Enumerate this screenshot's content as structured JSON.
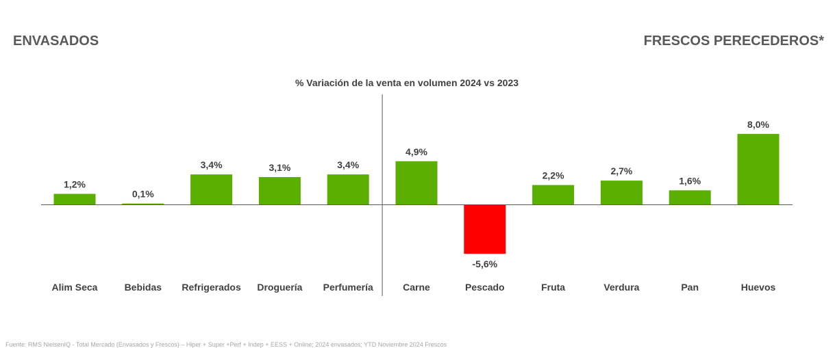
{
  "headings": {
    "left": "ENVASADOS",
    "right": "FRESCOS PERECEDEROS*"
  },
  "footer": "Fuente: RMS NielsenIQ - Total Mercado (Envasados y Frescos) – Hiper + Super +Perf + Indep + EESS + Online; 2024 envasados; YTD Noviembre 2024 Frescos",
  "colors": {
    "positive": "#5aaf00",
    "negative": "#ff0000",
    "axis": "#595959"
  },
  "chart_data": {
    "type": "bar",
    "title": "% Variación de la venta en volumen 2024 vs 2023",
    "categories": [
      "Alim Seca",
      "Bebidas",
      "Refrigerados",
      "Droguería",
      "Perfumería",
      "Carne",
      "Pescado",
      "Fruta",
      "Verdura",
      "Pan",
      "Huevos"
    ],
    "values": [
      1.2,
      0.1,
      3.4,
      3.1,
      3.4,
      4.9,
      -5.6,
      2.2,
      2.7,
      1.6,
      8.0
    ],
    "value_labels": [
      "1,2%",
      "0,1%",
      "3,4%",
      "3,1%",
      "3,4%",
      "4,9%",
      "-5,6%",
      "2,2%",
      "2,7%",
      "1,6%",
      "8,0%"
    ],
    "groups": [
      {
        "name": "ENVASADOS",
        "categories": [
          "Alim Seca",
          "Bebidas",
          "Refrigerados",
          "Droguería",
          "Perfumería"
        ]
      },
      {
        "name": "FRESCOS PERECEDEROS*",
        "categories": [
          "Carne",
          "Pescado",
          "Fruta",
          "Verdura",
          "Pan",
          "Huevos"
        ]
      }
    ],
    "ylim": [
      -8,
      10
    ],
    "grid": false,
    "legend": "none"
  }
}
